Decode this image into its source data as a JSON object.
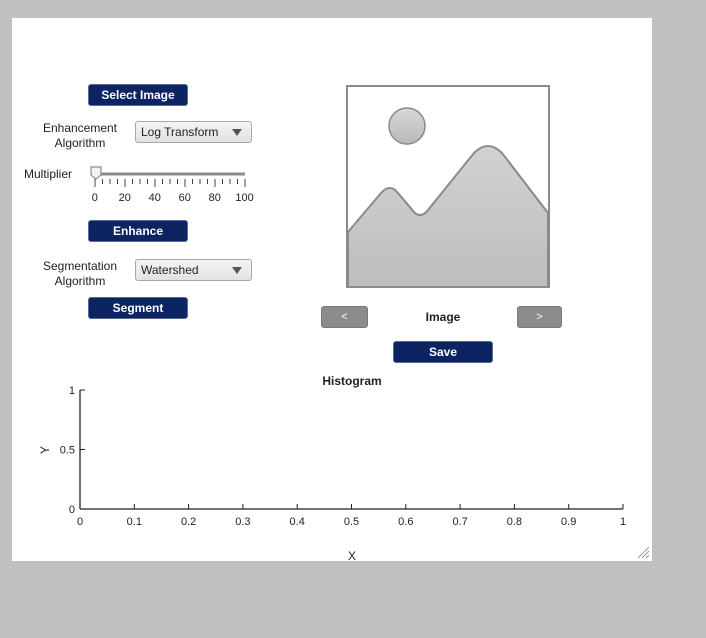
{
  "controls": {
    "select_image_label": "Select Image",
    "enhancement_label_line1": "Enhancement",
    "enhancement_label_line2": "Algorithm",
    "enhancement_selected": "Log Transform",
    "multiplier_label": "Multiplier",
    "multiplier_value": 0,
    "slider_ticks": [
      "0",
      "20",
      "40",
      "60",
      "80",
      "100"
    ],
    "enhance_label": "Enhance",
    "segmentation_label_line1": "Segmentation",
    "segmentation_label_line2": "Algorithm",
    "segmentation_selected": "Watershed",
    "segment_label": "Segment"
  },
  "image_panel": {
    "prev_label": "<",
    "caption": "Image",
    "next_label": ">",
    "save_label": "Save",
    "placeholder_icon": "image-placeholder-icon"
  },
  "colors": {
    "button_bg": "#0d2463",
    "figure_bg": "#ffffff",
    "window_bg": "#c0c0c0"
  },
  "chart_data": {
    "type": "line",
    "title": "Histogram",
    "xlabel": "X",
    "ylabel": "Y",
    "xlim": [
      0,
      1
    ],
    "ylim": [
      0,
      1
    ],
    "xticks": [
      "0",
      "0.1",
      "0.2",
      "0.3",
      "0.4",
      "0.5",
      "0.6",
      "0.7",
      "0.8",
      "0.9",
      "1"
    ],
    "yticks": [
      "0",
      "0.5",
      "1"
    ],
    "series": [],
    "grid": false
  }
}
